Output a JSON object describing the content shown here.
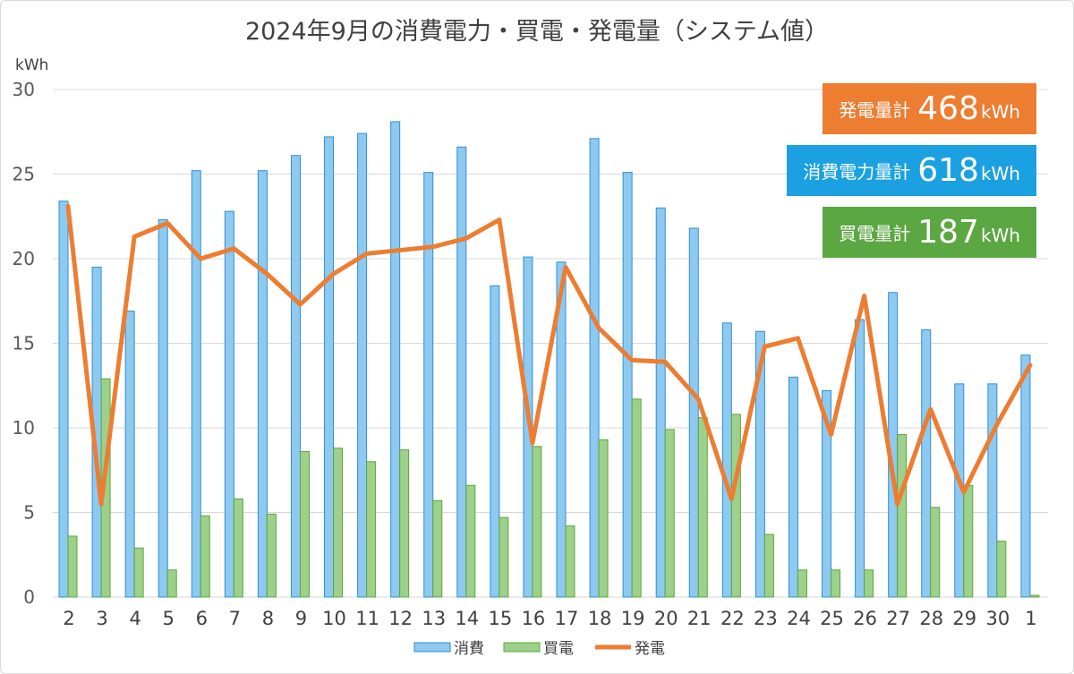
{
  "chart_data": {
    "type": "bar",
    "title": "2024年9月の消費電力・買電・発電量（システム値）",
    "yunit": "kWh",
    "ylim": [
      0,
      30
    ],
    "yticks": [
      0,
      5,
      10,
      15,
      20,
      25,
      30
    ],
    "grid": true,
    "legend_position": "bottom",
    "categories": [
      "2",
      "3",
      "4",
      "5",
      "6",
      "7",
      "8",
      "9",
      "10",
      "11",
      "12",
      "13",
      "14",
      "15",
      "16",
      "17",
      "18",
      "19",
      "20",
      "21",
      "22",
      "23",
      "24",
      "25",
      "26",
      "27",
      "28",
      "29",
      "30",
      "1"
    ],
    "series": [
      {
        "name": "消費",
        "type": "bar",
        "color": "#8ec9f0",
        "values": [
          23.4,
          19.5,
          16.9,
          22.3,
          25.2,
          22.8,
          25.2,
          26.1,
          27.2,
          27.4,
          28.1,
          25.1,
          26.6,
          18.4,
          20.1,
          19.8,
          27.1,
          25.1,
          23.0,
          21.8,
          16.2,
          15.7,
          13.0,
          12.2,
          16.4,
          18.0,
          15.8,
          12.6,
          12.6,
          14.3
        ]
      },
      {
        "name": "買電",
        "type": "bar",
        "color": "#9dd08a",
        "values": [
          3.6,
          12.9,
          2.9,
          1.6,
          4.8,
          5.8,
          4.9,
          8.6,
          8.8,
          8.0,
          8.7,
          5.7,
          6.6,
          4.7,
          8.9,
          4.2,
          9.3,
          11.7,
          9.9,
          10.6,
          10.8,
          3.7,
          1.6,
          1.6,
          1.6,
          9.6,
          5.3,
          6.6,
          3.3,
          0.1
        ]
      },
      {
        "name": "発電",
        "type": "line",
        "color": "#ed7d31",
        "values": [
          23.1,
          5.5,
          21.3,
          22.1,
          20.0,
          20.6,
          19.1,
          17.3,
          19.1,
          20.3,
          20.5,
          20.7,
          21.2,
          22.3,
          9.1,
          19.5,
          15.9,
          14.0,
          13.9,
          11.7,
          5.8,
          14.8,
          15.3,
          9.6,
          17.8,
          5.5,
          11.1,
          6.2,
          10.2,
          13.7
        ]
      }
    ]
  },
  "summary": {
    "generation": {
      "label": "発電量計",
      "value": "468",
      "unit": "kWh",
      "color": "#ed7d31"
    },
    "consumption": {
      "label": "消費電力量計",
      "value": "618",
      "unit": "kWh",
      "color": "#1ba1e2"
    },
    "purchase": {
      "label": "買電量計",
      "value": "187",
      "unit": "kWh",
      "color": "#5ba741"
    }
  },
  "colors": {
    "bar1_stroke": "#2f8fd4",
    "bar2_stroke": "#5aa83b",
    "grid": "#d9d9d9"
  }
}
